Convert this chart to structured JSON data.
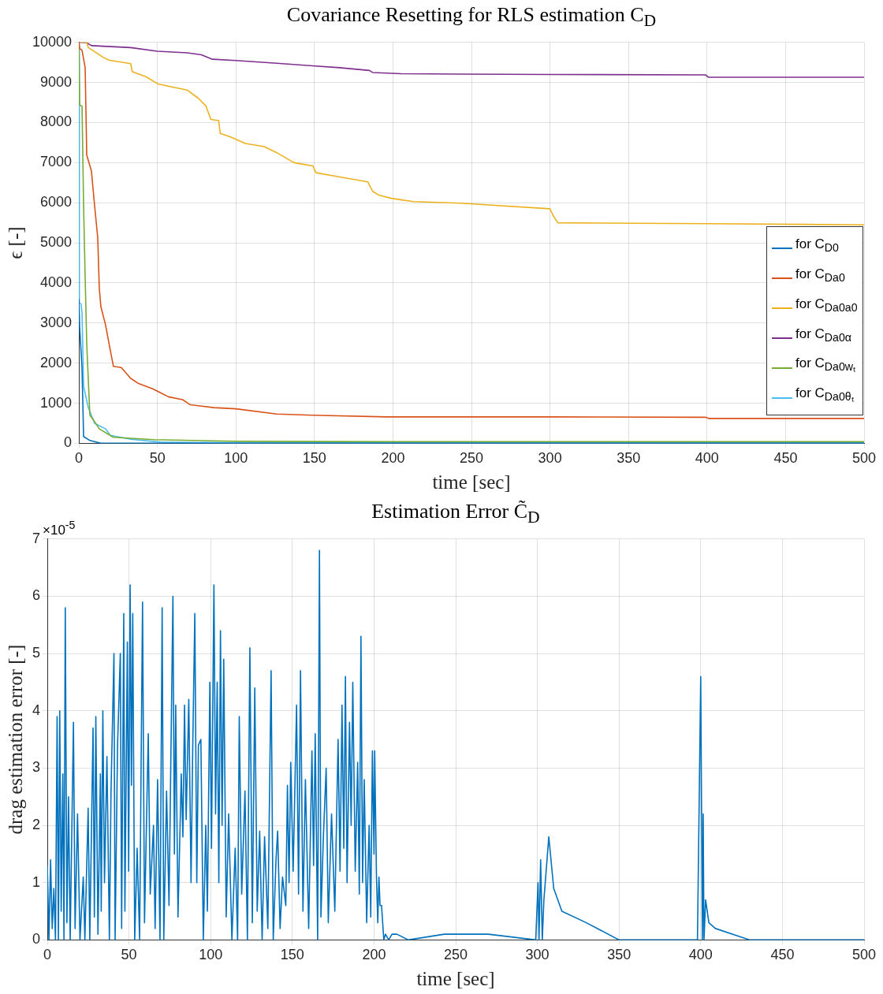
{
  "chart_data": [
    {
      "type": "line",
      "title": "Covariance Resetting for RLS estimation C$_{D}$",
      "xlabel": "time [sec]",
      "ylabel": "ϵ [-]",
      "xlim": [
        0,
        500
      ],
      "xticks": [
        0,
        50,
        100,
        150,
        200,
        250,
        300,
        350,
        400,
        450,
        500
      ],
      "ylim": [
        0,
        10000
      ],
      "yticks": [
        0,
        1000,
        2000,
        3000,
        4000,
        5000,
        6000,
        7000,
        8000,
        9000,
        10000
      ],
      "grid": true,
      "legend": "right",
      "series": [
        {
          "name": "for C$_{D0}$",
          "color": "#0072bd",
          "x": [
            0,
            0.5,
            2,
            3,
            7,
            14,
            50,
            100,
            200,
            300,
            400,
            500
          ],
          "values": [
            3600,
            2880,
            1890,
            170,
            70,
            0,
            0,
            0,
            0,
            0,
            0,
            0
          ]
        },
        {
          "name": "for C$_{Da0}$",
          "color": "#d95319",
          "x": [
            0,
            0.5,
            2,
            4,
            5,
            8,
            10,
            12,
            13,
            14,
            17,
            20,
            22,
            27,
            33,
            38,
            47,
            52,
            57,
            66,
            71,
            86,
            100,
            126,
            149,
            196,
            300,
            399,
            401,
            500
          ],
          "values": [
            10000,
            9850,
            9800,
            9370,
            7190,
            6790,
            5930,
            5130,
            3870,
            3410,
            2950,
            2320,
            1920,
            1890,
            1620,
            1490,
            1360,
            1260,
            1160,
            1090,
            960,
            890,
            860,
            730,
            700,
            660,
            660,
            650,
            620,
            620
          ]
        },
        {
          "name": "for C$_{Da0a0}$",
          "color": "#edb120",
          "x": [
            0,
            5,
            6,
            15,
            19,
            33,
            34,
            43,
            50,
            59,
            69,
            76,
            81,
            84,
            89,
            90,
            96,
            106,
            118,
            126,
            137,
            149,
            151,
            164,
            184,
            187,
            191,
            199,
            213,
            243,
            300,
            302,
            305,
            400,
            500
          ],
          "values": [
            10000,
            10000,
            9870,
            9640,
            9560,
            9470,
            9270,
            9140,
            8970,
            8890,
            8810,
            8610,
            8410,
            8080,
            8050,
            7730,
            7650,
            7480,
            7400,
            7250,
            7000,
            6920,
            6750,
            6660,
            6520,
            6290,
            6190,
            6110,
            6030,
            5990,
            5850,
            5680,
            5500,
            5480,
            5450
          ]
        },
        {
          "name": "for C$_{Da0α}$",
          "color": "#7e2f8e",
          "x": [
            0,
            5,
            8,
            33,
            50,
            69,
            78,
            85,
            100,
            126,
            147,
            166,
            185,
            187,
            205,
            243,
            300,
            399,
            401,
            500
          ],
          "values": [
            10000,
            9990,
            9920,
            9870,
            9780,
            9740,
            9690,
            9580,
            9550,
            9480,
            9420,
            9370,
            9300,
            9250,
            9220,
            9210,
            9200,
            9190,
            9130,
            9130
          ]
        },
        {
          "name": "for C$_{Da0wₜ}$",
          "color": "#77ac30",
          "x": [
            0,
            0.5,
            2,
            3,
            4,
            5,
            7,
            9,
            13,
            22,
            48,
            100,
            200,
            500
          ],
          "values": [
            10000,
            8440,
            8410,
            5930,
            4140,
            2480,
            700,
            600,
            360,
            150,
            90,
            50,
            40,
            40
          ]
        },
        {
          "name": "for C$_{Da0θₜ}$",
          "color": "#4dbeee",
          "x": [
            0,
            0.3,
            1.4,
            2,
            3,
            6,
            10,
            17,
            20,
            33,
            52,
            100,
            500
          ],
          "values": [
            10000,
            3500,
            3480,
            3250,
            1420,
            890,
            500,
            360,
            200,
            100,
            30,
            10,
            10
          ]
        }
      ]
    },
    {
      "type": "line",
      "title": "Estimation Error C̃$_{D}$",
      "xlabel": "time [sec]",
      "ylabel": "drag estimation error [-]",
      "xlim": [
        0,
        500
      ],
      "xticks": [
        0,
        50,
        100,
        150,
        200,
        250,
        300,
        350,
        400,
        450,
        500
      ],
      "ylim": [
        0,
        7
      ],
      "yticks": [
        0,
        1,
        2,
        3,
        4,
        5,
        6,
        7
      ],
      "grid": true,
      "annotations": [
        "×10$^{-5}$"
      ],
      "series": [
        {
          "color": "#0072bd",
          "x": [
            0,
            1,
            2,
            3,
            4,
            5,
            6,
            6.8,
            7.6,
            8.5,
            9.5,
            10.2,
            11,
            12,
            13,
            14,
            16,
            17,
            18.5,
            20,
            22,
            23,
            25,
            26,
            28,
            28.8,
            29.7,
            31,
            32.5,
            33,
            34,
            35,
            36.5,
            38,
            39,
            40.8,
            41.5,
            43,
            44.7,
            45.5,
            46.8,
            47.5,
            49,
            49.8,
            50.7,
            51.5,
            52.3,
            53.5,
            55,
            56.5,
            58.3,
            59.5,
            61.8,
            63,
            65,
            66,
            67.5,
            69,
            70.3,
            71.3,
            73,
            74.5,
            76.9,
            77.8,
            78.6,
            80,
            82,
            83,
            84,
            85,
            86.6,
            88,
            89,
            90.3,
            91.5,
            92.5,
            94,
            95.5,
            97,
            98,
            99.5,
            100.5,
            102,
            103,
            104,
            105,
            106,
            107,
            108,
            109.5,
            111,
            113,
            115,
            116.5,
            117.5,
            119,
            121,
            122.5,
            124,
            125.5,
            127,
            128.5,
            130,
            131.5,
            133,
            135,
            137,
            138.3,
            140,
            141,
            142.5,
            144,
            146,
            147,
            148,
            149,
            150.5,
            152.6,
            153.8,
            155,
            156.5,
            158,
            160,
            162,
            163,
            164,
            165.5,
            166.6,
            167.5,
            169,
            170.7,
            172,
            174,
            176,
            178,
            179.2,
            180.4,
            181.5,
            182.5,
            183.5,
            185,
            186,
            187,
            188.5,
            190,
            191,
            192,
            193,
            194,
            195.5,
            197,
            198,
            199,
            200,
            200.4,
            201.5,
            202.3,
            203,
            203.7,
            204.6,
            206,
            207,
            209,
            211,
            214,
            221,
            243,
            270,
            299,
            300.4,
            301,
            302,
            303,
            304,
            307,
            310,
            315,
            330,
            350,
            370,
            398,
            400,
            401,
            401.5,
            402,
            403,
            405,
            409,
            430,
            450,
            470,
            500
          ],
          "values": [
            1.3,
            0,
            1.4,
            0.2,
            0.9,
            0,
            3.9,
            0,
            4.0,
            0.5,
            2.9,
            0,
            5.8,
            0.3,
            2.5,
            0,
            3.8,
            0.2,
            2.2,
            0,
            1.1,
            0,
            2.3,
            0,
            3.7,
            0.4,
            3.9,
            0.1,
            2.9,
            0.5,
            4.0,
            1.0,
            3.2,
            0,
            2.6,
            5.0,
            0,
            3.4,
            5.0,
            0.2,
            5.7,
            0.5,
            5.2,
            1.2,
            6.2,
            2.7,
            5.7,
            0,
            1.6,
            0,
            5.9,
            0.3,
            3.6,
            0.8,
            2.0,
            0.2,
            2.8,
            0,
            5.8,
            0,
            2.6,
            0.6,
            6.0,
            1.5,
            4.1,
            0.4,
            2.9,
            1.8,
            4.1,
            2.1,
            4.2,
            1.0,
            3.3,
            5.7,
            1.0,
            3.4,
            3.5,
            0,
            2.0,
            0.5,
            4.5,
            1.6,
            6.2,
            2.2,
            4.5,
            1.0,
            5.4,
            2.0,
            4.9,
            0.4,
            2.2,
            0,
            1.6,
            0,
            3.9,
            0.8,
            2.6,
            0,
            5.1,
            0.3,
            4.4,
            0.5,
            1.9,
            0,
            1.8,
            0.2,
            4.7,
            0,
            1.4,
            1.9,
            0.2,
            1.1,
            0.6,
            2.7,
            1.0,
            3.1,
            1.2,
            4.1,
            0.8,
            4.7,
            0.5,
            2.8,
            0.2,
            3.3,
            1.3,
            3.6,
            0,
            6.8,
            0.4,
            1.8,
            3.0,
            0.3,
            2.2,
            0.5,
            3.5,
            1.2,
            4.1,
            1.6,
            4.6,
            1.0,
            3.8,
            2.0,
            4.5,
            1.2,
            3.1,
            0.8,
            5.3,
            1.0,
            2.8,
            0.3,
            2.0,
            0.4,
            3.3,
            1.5,
            3.3,
            1.1,
            0.3,
            1.1,
            0.6,
            0.6,
            0,
            0.1,
            0,
            0.1,
            0.1,
            0,
            0.1,
            0.1,
            0,
            1.0,
            0,
            1.4,
            0,
            0.7,
            1.8,
            0.9,
            0.5,
            0.3,
            0,
            0,
            0,
            4.6,
            0,
            2.2,
            0,
            0.7,
            0.3,
            0.2,
            0,
            0,
            0,
            0
          ]
        }
      ]
    }
  ]
}
